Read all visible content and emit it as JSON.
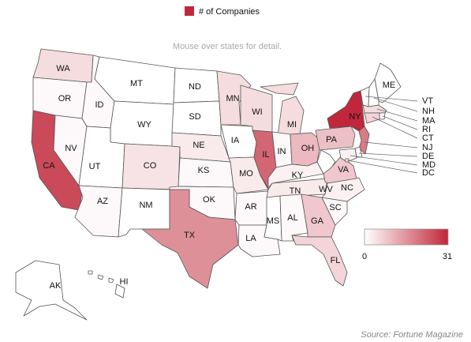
{
  "chart_data": {
    "type": "choropleth",
    "legend_title": "# of Companies",
    "subtitle": "Mouse over states for detail.",
    "source": "Source: Fortune Magazine",
    "scale": [
      0,
      31
    ],
    "colors": [
      "#ffffff",
      "#c0273a"
    ],
    "states": [
      {
        "label": "WA",
        "value": 5
      },
      {
        "label": "OR",
        "value": 1
      },
      {
        "label": "CA",
        "value": 26
      },
      {
        "label": "NV",
        "value": 1
      },
      {
        "label": "ID",
        "value": 1
      },
      {
        "label": "MT",
        "value": 0
      },
      {
        "label": "WY",
        "value": 0
      },
      {
        "label": "UT",
        "value": 0
      },
      {
        "label": "AZ",
        "value": 1
      },
      {
        "label": "CO",
        "value": 4
      },
      {
        "label": "NM",
        "value": 0
      },
      {
        "label": "ND",
        "value": 0
      },
      {
        "label": "SD",
        "value": 0
      },
      {
        "label": "NE",
        "value": 3
      },
      {
        "label": "KS",
        "value": 1
      },
      {
        "label": "OK",
        "value": 1
      },
      {
        "label": "TX",
        "value": 16
      },
      {
        "label": "MN",
        "value": 5
      },
      {
        "label": "IA",
        "value": 0
      },
      {
        "label": "MO",
        "value": 3
      },
      {
        "label": "AR",
        "value": 1
      },
      {
        "label": "LA",
        "value": 1
      },
      {
        "label": "WI",
        "value": 5
      },
      {
        "label": "IL",
        "value": 22
      },
      {
        "label": "MI",
        "value": 5
      },
      {
        "label": "IN",
        "value": 1
      },
      {
        "label": "OH",
        "value": 10
      },
      {
        "label": "KY",
        "value": 2
      },
      {
        "label": "TN",
        "value": 3
      },
      {
        "label": "MS",
        "value": 0
      },
      {
        "label": "AL",
        "value": 1
      },
      {
        "label": "GA",
        "value": 8
      },
      {
        "label": "FL",
        "value": 6
      },
      {
        "label": "SC",
        "value": 1
      },
      {
        "label": "NC",
        "value": 2
      },
      {
        "label": "VA",
        "value": 8
      },
      {
        "label": "WV",
        "value": 0
      },
      {
        "label": "PA",
        "value": 9
      },
      {
        "label": "NY",
        "value": 31
      },
      {
        "label": "ME",
        "value": 0
      },
      {
        "label": "VT",
        "value": 0
      },
      {
        "label": "NH",
        "value": 0
      },
      {
        "label": "MA",
        "value": 5
      },
      {
        "label": "RI",
        "value": 1
      },
      {
        "label": "CT",
        "value": 6
      },
      {
        "label": "NJ",
        "value": 19
      },
      {
        "label": "DE",
        "value": 0
      },
      {
        "label": "MD",
        "value": 2
      },
      {
        "label": "DC",
        "value": 0
      },
      {
        "label": "AK",
        "value": 0
      },
      {
        "label": "HI",
        "value": 0
      }
    ]
  }
}
